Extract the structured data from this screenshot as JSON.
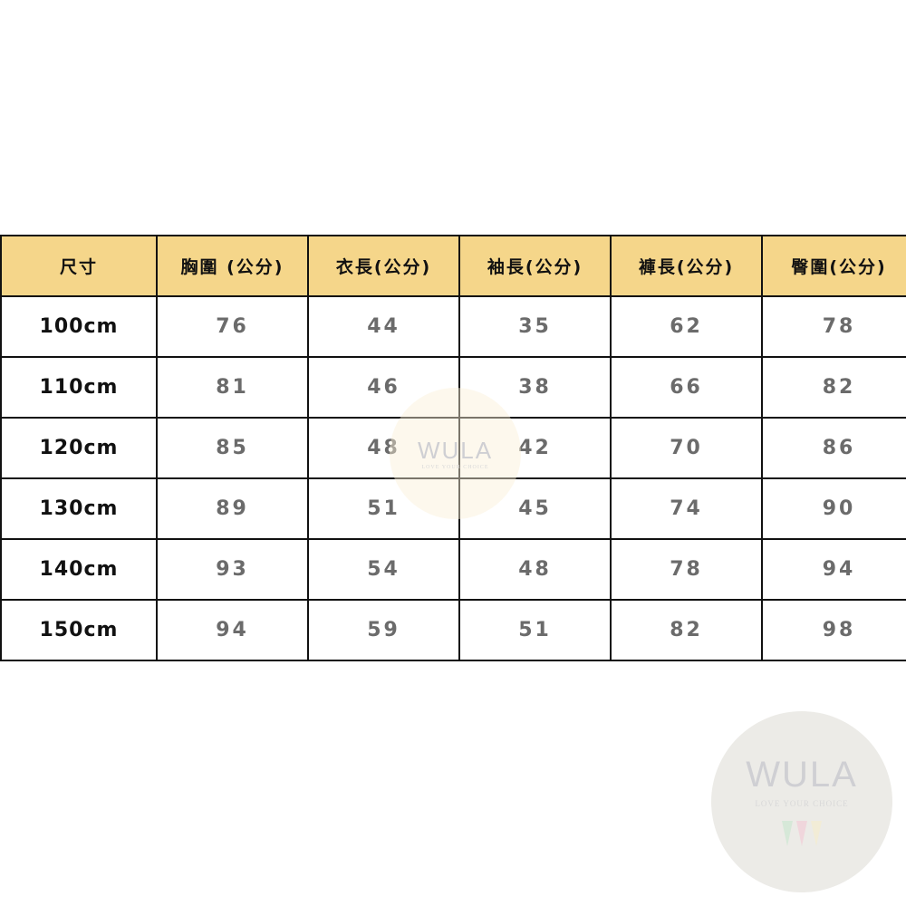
{
  "table": {
    "headers": [
      "尺寸",
      "胸圍 (公分)",
      "衣長(公分)",
      "袖長(公分)",
      "褲長(公分)",
      "臀圍(公分)"
    ],
    "rows": [
      [
        "100cm",
        "76",
        "44",
        "35",
        "62",
        "78"
      ],
      [
        "110cm",
        "81",
        "46",
        "38",
        "66",
        "82"
      ],
      [
        "120cm",
        "85",
        "48",
        "42",
        "70",
        "86"
      ],
      [
        "130cm",
        "89",
        "51",
        "45",
        "74",
        "90"
      ],
      [
        "140cm",
        "93",
        "54",
        "48",
        "78",
        "94"
      ],
      [
        "150cm",
        "94",
        "59",
        "51",
        "82",
        "98"
      ]
    ]
  },
  "watermark": {
    "logo": "WULA",
    "tagline": "LOVE YOUR CHOICE"
  },
  "colors": {
    "header_bg": "#f5d68a",
    "value_text": "#6b6b6b",
    "border": "#111111"
  }
}
